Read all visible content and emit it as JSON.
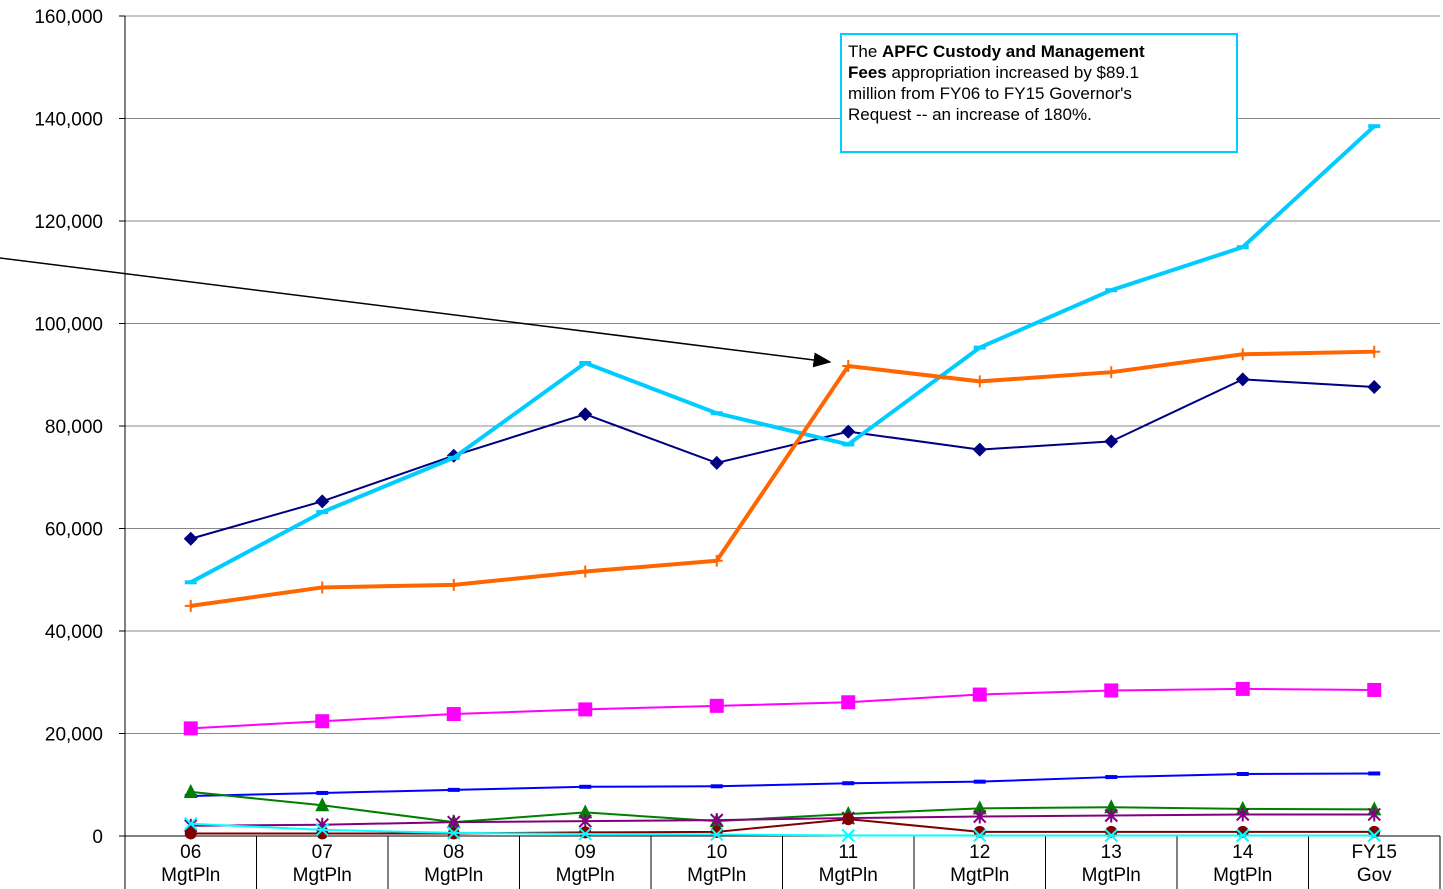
{
  "chart_data": {
    "type": "line",
    "categories": [
      [
        "06",
        "MgtPln"
      ],
      [
        "07",
        "MgtPln"
      ],
      [
        "08",
        "MgtPln"
      ],
      [
        "09",
        "MgtPln"
      ],
      [
        "10",
        "MgtPln"
      ],
      [
        "11",
        "MgtPln"
      ],
      [
        "12",
        "MgtPln"
      ],
      [
        "13",
        "MgtPln"
      ],
      [
        "14",
        "MgtPln"
      ],
      [
        "FY15",
        "Gov"
      ]
    ],
    "ylim": [
      0,
      160000
    ],
    "yticks": [
      0,
      {
        "value": 20000,
        "label": "20,000"
      },
      {
        "value": 40000,
        "label": "40,000"
      },
      {
        "value": 60000,
        "label": "60,000"
      },
      {
        "value": 80000,
        "label": "80,000"
      },
      {
        "value": 100000,
        "label": "100,000"
      },
      {
        "value": 120000,
        "label": "120,000"
      },
      {
        "value": 140000,
        "label": "140,000"
      },
      {
        "value": 160000,
        "label": "160,000"
      }
    ],
    "grid": true,
    "series": [
      {
        "color": "#000080",
        "marker": "diamond",
        "width": 2,
        "values": [
          58000,
          65300,
          74200,
          82300,
          72800,
          78900,
          75400,
          77000,
          89100,
          87600
        ]
      },
      {
        "color": "#00ccff",
        "marker": "dash",
        "width": 4,
        "values": [
          49500,
          63200,
          73800,
          92300,
          82500,
          76400,
          95300,
          106500,
          114900,
          138500
        ]
      },
      {
        "color": "#ff6600",
        "marker": "plus",
        "width": 4,
        "values": [
          44900,
          48500,
          49000,
          51600,
          53700,
          91700,
          88700,
          90500,
          94000,
          94500
        ]
      },
      {
        "color": "#ff00ff",
        "marker": "square",
        "width": 2,
        "values": [
          21000,
          22400,
          23800,
          24700,
          25400,
          26100,
          27600,
          28400,
          28700,
          28500
        ]
      },
      {
        "color": "#0000ff",
        "marker": "dash",
        "width": 2,
        "values": [
          7800,
          8400,
          9000,
          9600,
          9700,
          10300,
          10600,
          11500,
          12100,
          12200
        ]
      },
      {
        "color": "#008000",
        "marker": "triangle",
        "width": 2,
        "values": [
          8600,
          6000,
          2700,
          4600,
          2900,
          4300,
          5400,
          5600,
          5300,
          5200
        ]
      },
      {
        "color": "#800080",
        "marker": "star",
        "width": 2,
        "values": [
          2000,
          2200,
          2700,
          2900,
          3100,
          3500,
          3800,
          4000,
          4200,
          4200
        ]
      },
      {
        "color": "#800000",
        "marker": "circle",
        "width": 2,
        "values": [
          500,
          500,
          500,
          700,
          800,
          3300,
          800,
          800,
          800,
          800
        ]
      },
      {
        "color": "#00ffff",
        "marker": "x",
        "width": 2,
        "values": [
          2400,
          1200,
          600,
          400,
          300,
          100,
          100,
          100,
          100,
          100
        ]
      }
    ],
    "annotation": {
      "lines": [
        [
          {
            "text": "The "
          },
          {
            "text": "APFC Custody and Management",
            "bold": true
          }
        ],
        [
          {
            "text": "Fees",
            "bold": true
          },
          {
            "text": " appropriation increased by $89.1"
          }
        ],
        [
          {
            "text": "million from FY06 to FY15 Governor's"
          }
        ],
        [
          {
            "text": "Request -- an increase of 180%."
          }
        ]
      ]
    }
  }
}
